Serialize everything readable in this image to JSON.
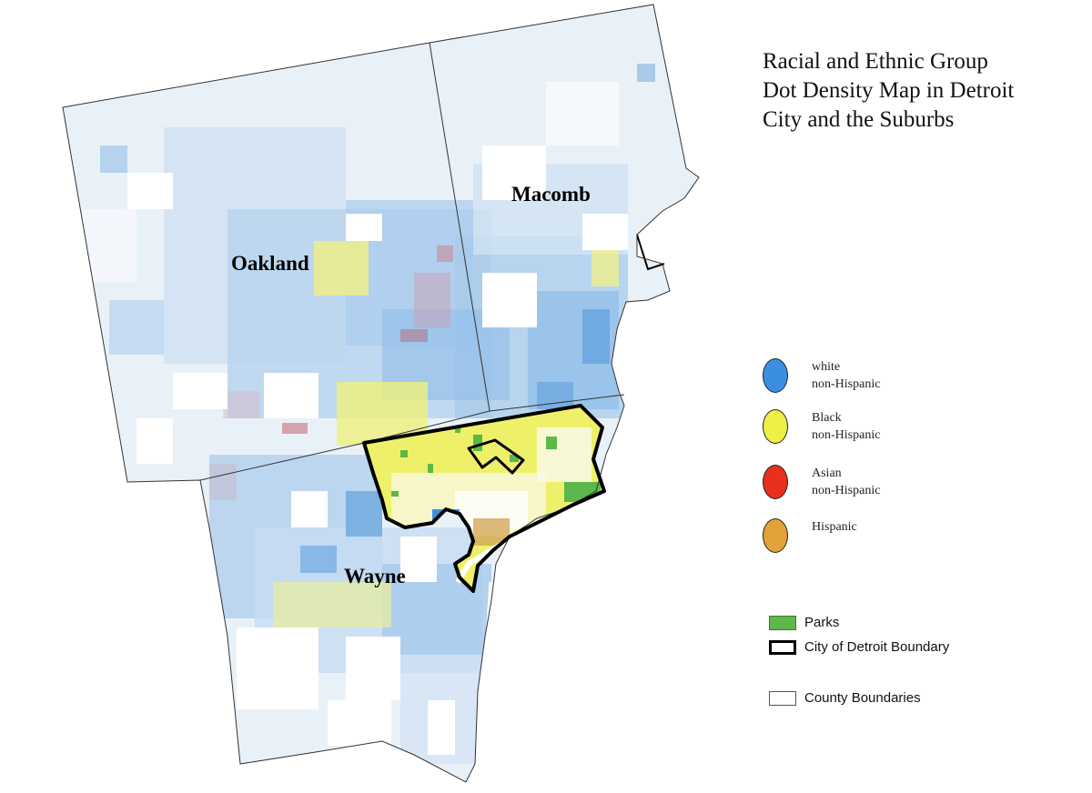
{
  "title_lines": [
    "Racial and Ethnic Group",
    "Dot Density Map in Detroit",
    "City and the Suburbs"
  ],
  "counties": {
    "oakland": "Oakland",
    "macomb": "Macomb",
    "wayne": "Wayne"
  },
  "legend": {
    "groups": [
      {
        "line1": "white",
        "line2": "non-Hispanic",
        "color": "#3b8fe3"
      },
      {
        "line1": "Black",
        "line2": "non-Hispanic",
        "color": "#eef047"
      },
      {
        "line1": "Asian",
        "line2": "non-Hispanic",
        "color": "#e8301c"
      },
      {
        "line1": "Hispanic",
        "line2": "",
        "color": "#e2a23a"
      }
    ],
    "parks": {
      "label": "Parks",
      "color": "#5cb84a"
    },
    "city_boundary": {
      "label": "City of Detroit Boundary"
    },
    "county_boundaries": {
      "label": "County Boundaries"
    }
  }
}
